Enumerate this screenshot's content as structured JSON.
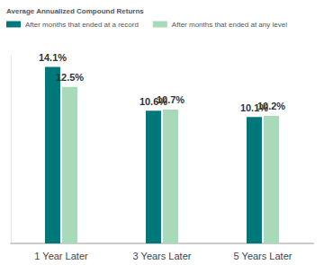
{
  "chart_data": {
    "type": "bar",
    "title": "Average Annualized Compound Returns",
    "categories": [
      "1 Year Later",
      "3 Years Later",
      "5 Years Later"
    ],
    "series": [
      {
        "name": "After months that ended at a record",
        "color": "#00787a",
        "values": [
          14.1,
          10.6,
          10.1
        ],
        "value_labels": [
          "14.1%",
          "10.6%",
          "10.1%"
        ]
      },
      {
        "name": "After months that ended at any level",
        "color": "#a6dab8",
        "values": [
          12.5,
          10.7,
          10.2
        ],
        "value_labels": [
          "12.5%",
          "10.7%",
          "10.2%"
        ]
      }
    ],
    "ylim": [
      0,
      15
    ],
    "grid": false,
    "legend": "top-left",
    "data_labels": true,
    "tick_labels": "x"
  }
}
